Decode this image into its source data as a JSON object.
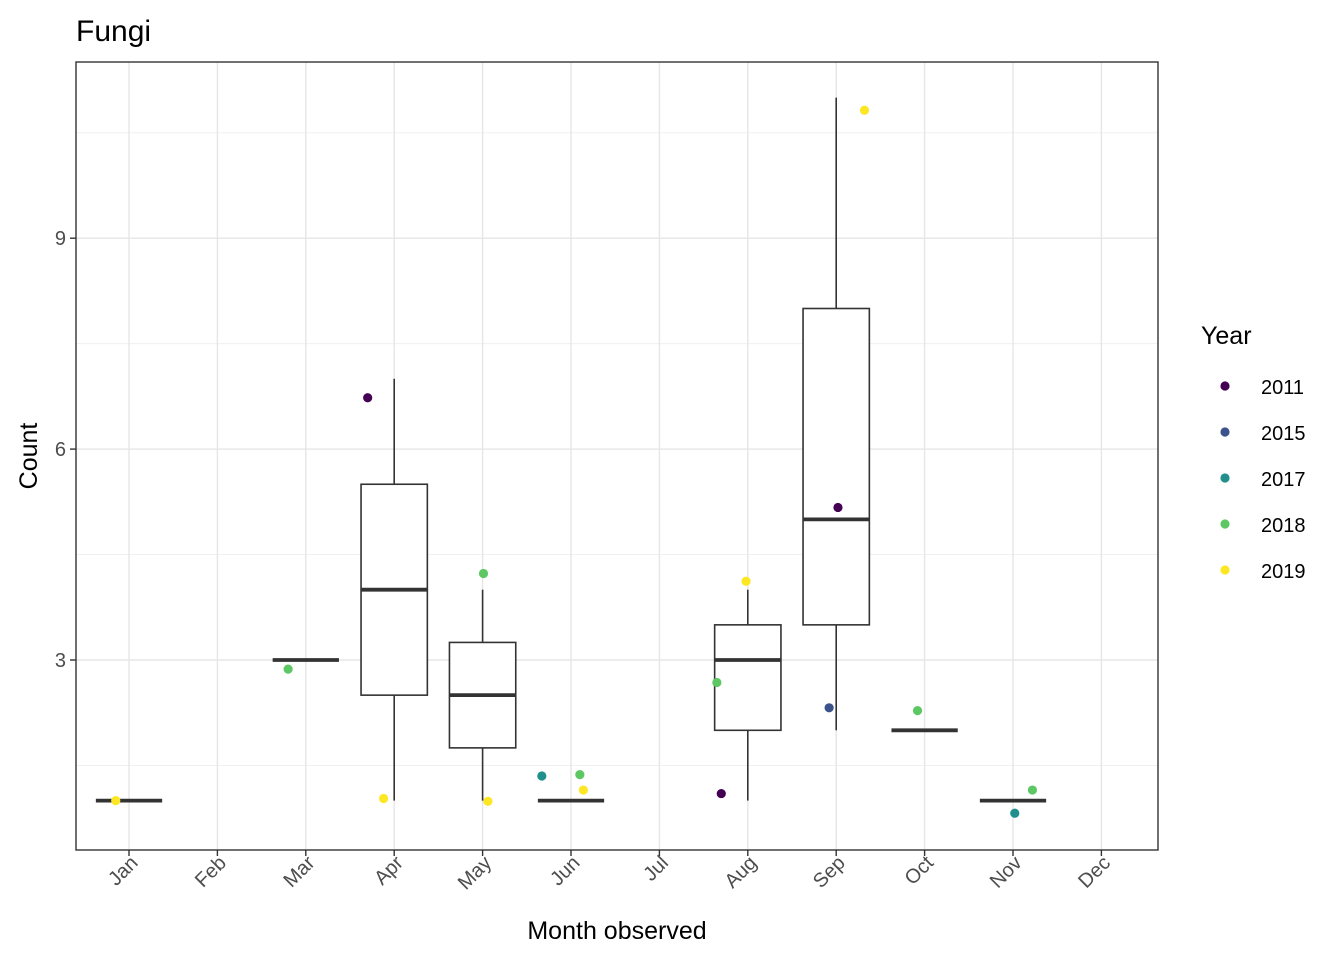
{
  "chart_data": {
    "type": "box",
    "title": "Fungi",
    "xlabel": "Month observed",
    "ylabel": "Count",
    "categories": [
      "Jan",
      "Feb",
      "Mar",
      "Apr",
      "May",
      "Jun",
      "Jul",
      "Aug",
      "Sep",
      "Oct",
      "Nov",
      "Dec"
    ],
    "yticks": [
      3,
      6,
      9
    ],
    "ylim": [
      0.2,
      11.5
    ],
    "grid": true,
    "legend": {
      "title": "Year",
      "placement": "right",
      "entries": [
        {
          "name": "2011",
          "color": "#440154"
        },
        {
          "name": "2015",
          "color": "#3B528B"
        },
        {
          "name": "2017",
          "color": "#21908C"
        },
        {
          "name": "2018",
          "color": "#5DC863"
        },
        {
          "name": "2019",
          "color": "#FDE725"
        }
      ]
    },
    "boxes": [
      {
        "month": "Jan",
        "min": 1,
        "q1": 1,
        "median": 1,
        "q3": 1,
        "max": 1
      },
      {
        "month": "Mar",
        "min": 3,
        "q1": 3,
        "median": 3,
        "q3": 3,
        "max": 3
      },
      {
        "month": "Apr",
        "min": 1,
        "q1": 2.5,
        "median": 4,
        "q3": 5.5,
        "max": 7
      },
      {
        "month": "May",
        "min": 1,
        "q1": 1.75,
        "median": 2.5,
        "q3": 3.25,
        "max": 4
      },
      {
        "month": "Jun",
        "min": 1,
        "q1": 1,
        "median": 1,
        "q3": 1,
        "max": 1
      },
      {
        "month": "Aug",
        "min": 1,
        "q1": 2,
        "median": 3,
        "q3": 3.5,
        "max": 4
      },
      {
        "month": "Sep",
        "min": 2,
        "q1": 3.5,
        "median": 5,
        "q3": 8,
        "max": 11
      },
      {
        "month": "Oct",
        "min": 2,
        "q1": 2,
        "median": 2,
        "q3": 2,
        "max": 2
      },
      {
        "month": "Nov",
        "min": 1,
        "q1": 1,
        "median": 1,
        "q3": 1,
        "max": 1
      }
    ],
    "points": [
      {
        "month": "Jan",
        "offset": -0.15,
        "y": 1.0,
        "year": "2019"
      },
      {
        "month": "Mar",
        "offset": -0.2,
        "y": 2.87,
        "year": "2018"
      },
      {
        "month": "Apr",
        "offset": -0.3,
        "y": 6.73,
        "year": "2011"
      },
      {
        "month": "Apr",
        "offset": -0.12,
        "y": 1.03,
        "year": "2019"
      },
      {
        "month": "May",
        "offset": 0.01,
        "y": 4.23,
        "year": "2018"
      },
      {
        "month": "May",
        "offset": 0.06,
        "y": 0.99,
        "year": "2019"
      },
      {
        "month": "Jun",
        "offset": -0.33,
        "y": 1.35,
        "year": "2017"
      },
      {
        "month": "Jun",
        "offset": 0.1,
        "y": 1.37,
        "year": "2018"
      },
      {
        "month": "Jun",
        "offset": 0.14,
        "y": 1.15,
        "year": "2019"
      },
      {
        "month": "Aug",
        "offset": -0.35,
        "y": 2.68,
        "year": "2018"
      },
      {
        "month": "Aug",
        "offset": -0.3,
        "y": 1.1,
        "year": "2011"
      },
      {
        "month": "Aug",
        "offset": -0.02,
        "y": 4.12,
        "year": "2019"
      },
      {
        "month": "Sep",
        "offset": -0.08,
        "y": 2.32,
        "year": "2015"
      },
      {
        "month": "Sep",
        "offset": 0.02,
        "y": 5.17,
        "year": "2011"
      },
      {
        "month": "Sep",
        "offset": 0.32,
        "y": 10.82,
        "year": "2019"
      },
      {
        "month": "Oct",
        "offset": -0.08,
        "y": 2.28,
        "year": "2018"
      },
      {
        "month": "Nov",
        "offset": 0.02,
        "y": 0.82,
        "year": "2017"
      },
      {
        "month": "Nov",
        "offset": 0.22,
        "y": 1.15,
        "year": "2018"
      }
    ]
  }
}
